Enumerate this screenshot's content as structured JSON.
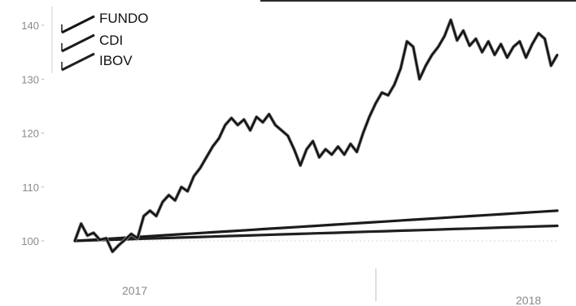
{
  "chart_data": {
    "type": "line",
    "ylim": [
      99,
      142
    ],
    "yticks": [
      100,
      110,
      120,
      130,
      140
    ],
    "x_labels": [
      "2017",
      "2018"
    ],
    "legend": {
      "position": "top-left"
    },
    "grid": false,
    "series": [
      {
        "name": "FUNDO",
        "color": "#151515",
        "values": [
          100,
          103.2,
          101,
          101.5,
          100.2,
          100.5,
          98,
          99.2,
          100.2,
          101.3,
          100.5,
          104.6,
          105.6,
          104.6,
          107.2,
          108.5,
          107.5,
          110,
          109.2,
          112,
          113.5,
          115.5,
          117.5,
          119,
          121.5,
          122.8,
          121.5,
          122.5,
          120.5,
          123,
          122,
          123.5,
          121.5,
          120.5,
          119.5,
          117,
          114,
          117,
          118.5,
          115.5,
          117,
          116,
          117.5,
          116,
          118,
          116.5,
          120,
          123,
          125.5,
          127.5,
          127,
          129,
          132,
          137,
          136,
          130,
          132.5,
          134.5,
          136,
          138,
          141,
          137.2,
          139,
          136.2,
          137.5,
          135,
          137,
          134.5,
          136.5,
          134,
          136,
          137,
          134,
          136.5,
          138.5,
          137.5,
          132.5,
          134.5
        ]
      },
      {
        "name": "CDI",
        "color": "#1c1c1c",
        "values": [
          100,
          100.2,
          100.4,
          100.6,
          100.8,
          101,
          101.2,
          101.4,
          101.6,
          101.8,
          102,
          102.2,
          102.4,
          102.6,
          102.8,
          103,
          103.2,
          103.4,
          103.6,
          103.8,
          104,
          104.2,
          104.4,
          104.6,
          104.8,
          105,
          105.2,
          105.4,
          105.6
        ]
      },
      {
        "name": "IBOV",
        "color": "#202020",
        "values": [
          100,
          100.1,
          100.2,
          100.3,
          100.4,
          100.5,
          100.6,
          100.7,
          100.8,
          100.9,
          101,
          101.1,
          101.2,
          101.3,
          101.4,
          101.5,
          101.6,
          101.7,
          101.8,
          101.9,
          102,
          102.1,
          102.2,
          102.3,
          102.4,
          102.5,
          102.6,
          102.7,
          102.8
        ]
      }
    ]
  }
}
